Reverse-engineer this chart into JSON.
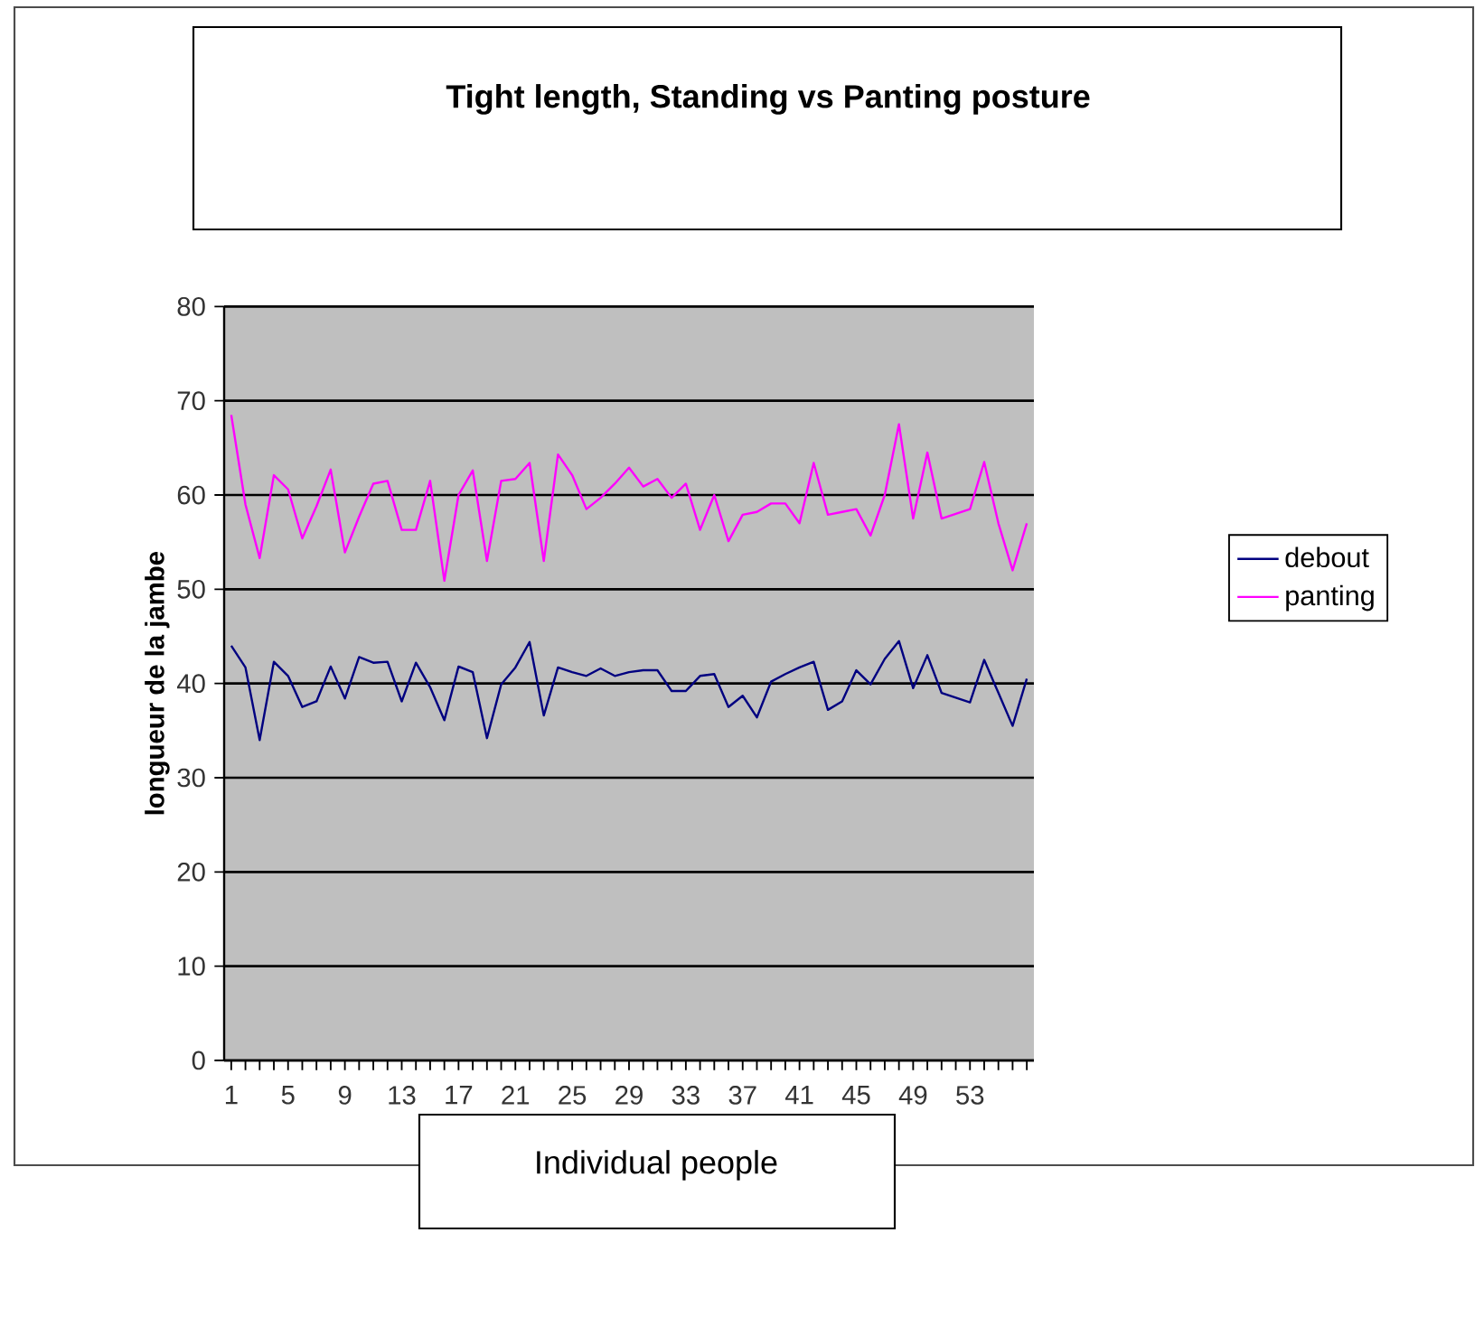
{
  "chart_data": {
    "type": "line",
    "title": "Tight length, Standing vs Panting posture",
    "xlabel": "Individual people",
    "ylabel": "longueur de la jambe",
    "categories": [
      "1",
      null,
      null,
      null,
      "5",
      null,
      null,
      null,
      "9",
      null,
      null,
      null,
      "13",
      null,
      null,
      null,
      "17",
      null,
      null,
      null,
      "21",
      null,
      null,
      null,
      "25",
      null,
      null,
      null,
      "29",
      null,
      null,
      null,
      "33",
      null,
      null,
      null,
      "37",
      null,
      null,
      null,
      "41",
      null,
      null,
      null,
      "45",
      null,
      null,
      null,
      "49",
      null,
      null,
      null,
      "53",
      null,
      null,
      null,
      null
    ],
    "series": [
      {
        "name": "debout",
        "color": "#000080",
        "values": [
          44,
          41.7,
          34,
          42.3,
          40.8,
          37.5,
          38.1,
          41.8,
          38.4,
          42.8,
          42.2,
          42.3,
          38.1,
          42.2,
          39.6,
          36.1,
          41.8,
          41.2,
          34.2,
          39.9,
          41.7,
          44.4,
          36.6,
          41.7,
          41.2,
          40.8,
          41.6,
          40.8,
          41.2,
          41.4,
          41.4,
          39.2,
          39.2,
          40.8,
          41,
          37.5,
          38.7,
          36.4,
          40.2,
          41,
          41.7,
          42.3,
          37.2,
          38.1,
          41.4,
          39.9,
          42.6,
          44.5,
          39.5,
          43,
          39,
          38.5,
          38,
          42.5,
          39,
          35.5,
          40.5
        ]
      },
      {
        "name": "panting",
        "color": "#ff00ff",
        "values": [
          68.5,
          59,
          53.3,
          62.1,
          60.6,
          55.4,
          58.8,
          62.7,
          53.9,
          57.7,
          61.2,
          61.5,
          56.3,
          56.3,
          61.5,
          50.9,
          60,
          62.6,
          53,
          61.5,
          61.7,
          63.4,
          53,
          64.3,
          62.1,
          58.5,
          59.7,
          61.2,
          62.9,
          60.9,
          61.7,
          59.7,
          61.2,
          56.3,
          60,
          55.1,
          57.9,
          58.2,
          59.1,
          59.1,
          57,
          63.4,
          57.9,
          58.2,
          58.5,
          55.7,
          60,
          67.5,
          57.5,
          64.5,
          57.5,
          58,
          58.5,
          63.5,
          57,
          52,
          57
        ]
      }
    ],
    "ylim": [
      0,
      80
    ],
    "yticks": [
      0,
      10,
      20,
      30,
      40,
      50,
      60,
      70,
      80
    ],
    "grid": "y",
    "legend": "right"
  }
}
